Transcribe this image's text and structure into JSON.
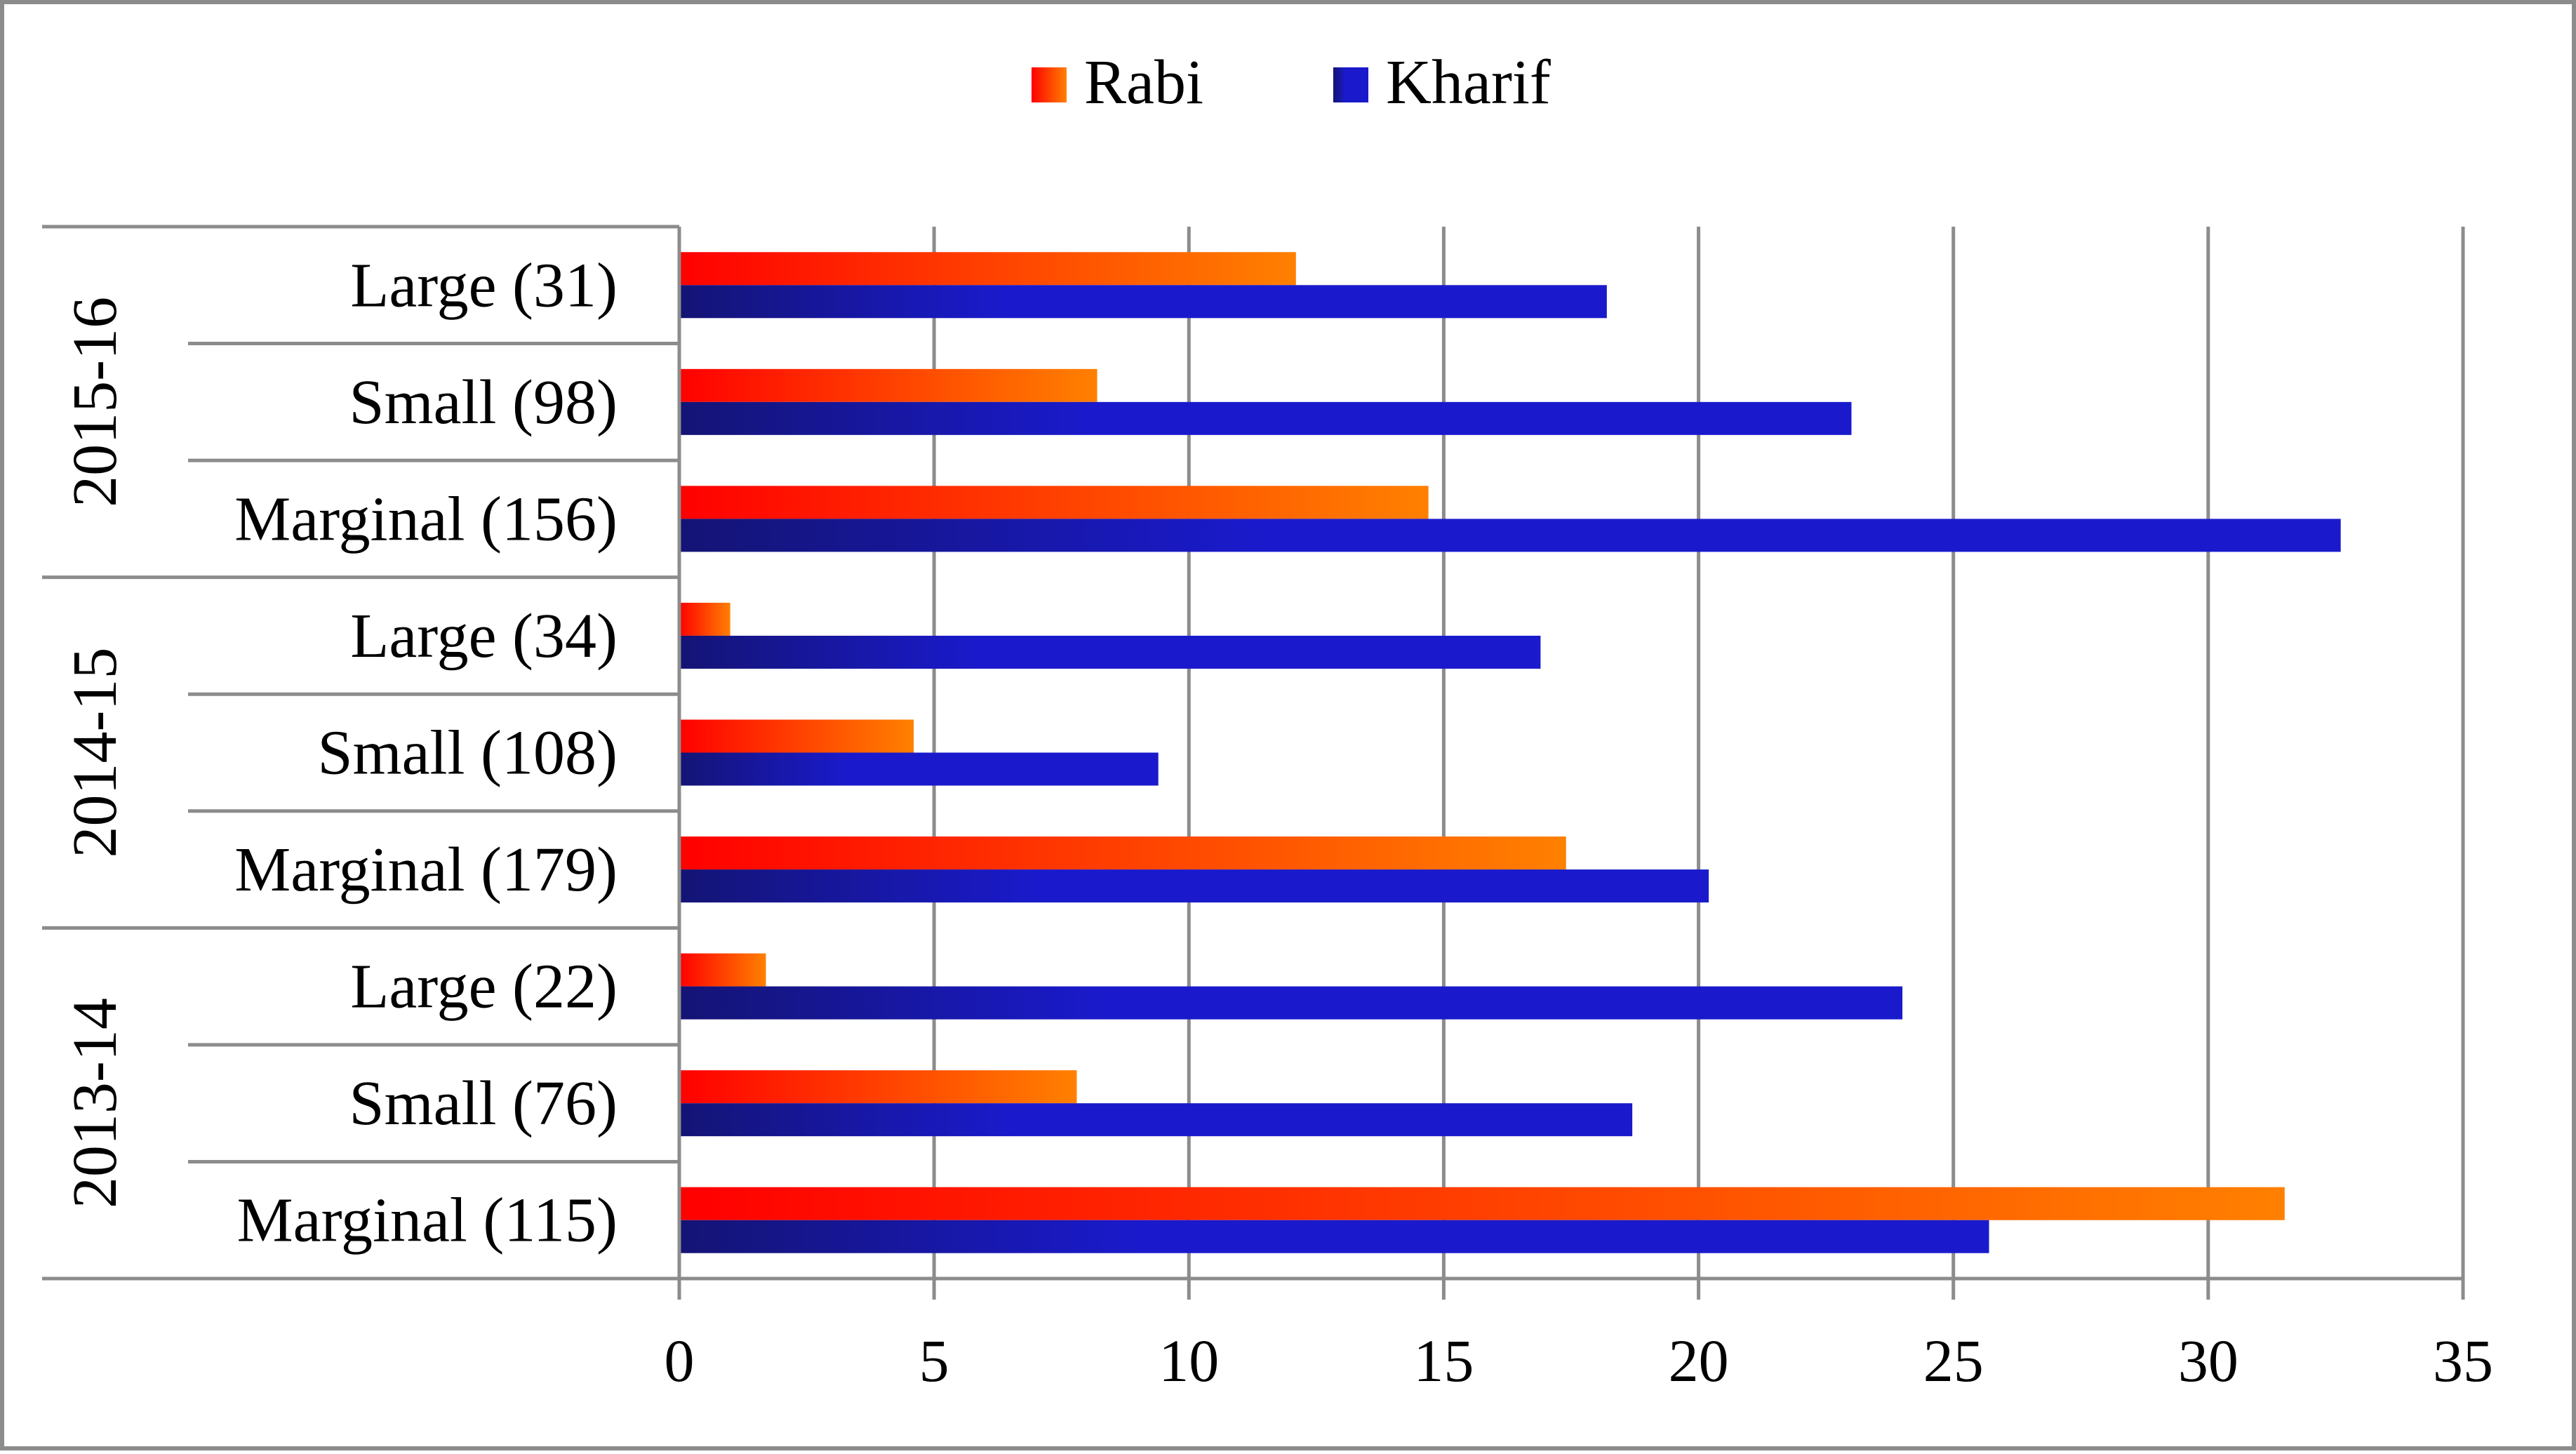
{
  "chart_data": {
    "type": "bar",
    "orientation": "horizontal",
    "groups": [
      {
        "label": "2015-16",
        "categories": [
          "Large (31)",
          "Small (98)",
          "Marginal (156)"
        ]
      },
      {
        "label": "2014-15",
        "categories": [
          "Large (34)",
          "Small (108)",
          "Marginal (179)"
        ]
      },
      {
        "label": "2013-14",
        "categories": [
          "Large (22)",
          "Small (76)",
          "Marginal (115)"
        ]
      }
    ],
    "series": [
      {
        "name": "Rabi",
        "color": "#ff8000",
        "gradient_start": "#ff0000",
        "values": [
          12.1,
          8.2,
          14.7,
          1.0,
          4.6,
          17.4,
          1.7,
          7.8,
          31.5
        ]
      },
      {
        "name": "Kharif",
        "color": "#1a1acc",
        "gradient_start": "#141475",
        "values": [
          18.2,
          23.0,
          32.6,
          16.9,
          9.4,
          20.2,
          24.0,
          18.7,
          25.7
        ]
      }
    ],
    "xlim": [
      0,
      35
    ],
    "xticks": [
      0,
      5,
      10,
      15,
      20,
      25,
      30,
      35
    ],
    "xlabel": "",
    "ylabel": "",
    "title": "",
    "grid": "vertical",
    "legend": "top-center"
  }
}
